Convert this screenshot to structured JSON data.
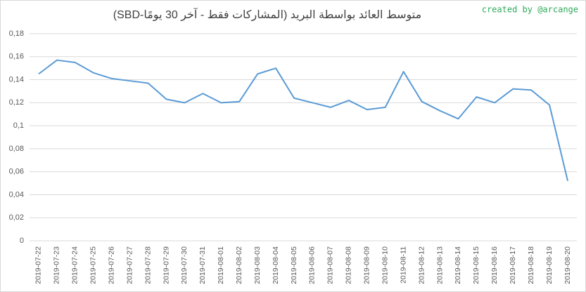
{
  "chart_data": {
    "type": "line",
    "title": "متوسط العائد بواسطة البريد (المشاركات فقط - آخر 30 يومًا-SBD)",
    "watermark": "created by @arcange",
    "categories": [
      "2019-07-22",
      "2019-07-23",
      "2019-07-24",
      "2019-07-25",
      "2019-07-26",
      "2019-07-27",
      "2019-07-28",
      "2019-07-29",
      "2019-07-30",
      "2019-07-31",
      "2019-08-01",
      "2019-08-02",
      "2019-08-03",
      "2019-08-04",
      "2019-08-05",
      "2019-08-06",
      "2019-08-07",
      "2019-08-08",
      "2019-08-09",
      "2019-08-10",
      "2019-08-11",
      "2019-08-12",
      "2019-08-13",
      "2019-08-14",
      "2019-08-15",
      "2019-08-16",
      "2019-08-17",
      "2019-08-18",
      "2019-08-19",
      "2019-08-20"
    ],
    "values": [
      0.145,
      0.157,
      0.155,
      0.146,
      0.141,
      0.139,
      0.137,
      0.123,
      0.12,
      0.128,
      0.12,
      0.121,
      0.145,
      0.15,
      0.124,
      0.12,
      0.116,
      0.122,
      0.114,
      0.116,
      0.147,
      0.121,
      0.113,
      0.106,
      0.125,
      0.12,
      0.132,
      0.131,
      0.118,
      0.052
    ],
    "color": "#5b9bd5",
    "ylim": [
      0,
      0.18
    ],
    "yticks": [
      0,
      {
        "value": 0.02,
        "label": "0,02"
      },
      {
        "value": 0.04,
        "label": "0,04"
      },
      {
        "value": 0.06,
        "label": "0,06"
      },
      {
        "value": 0.08,
        "label": "0,08"
      },
      {
        "value": 0.1,
        "label": "0,1"
      },
      {
        "value": 0.12,
        "label": "0,12"
      },
      {
        "value": 0.14,
        "label": "0,14"
      },
      {
        "value": 0.16,
        "label": "0,16"
      },
      {
        "value": 0.18,
        "label": "0,18"
      }
    ],
    "grid": true
  }
}
